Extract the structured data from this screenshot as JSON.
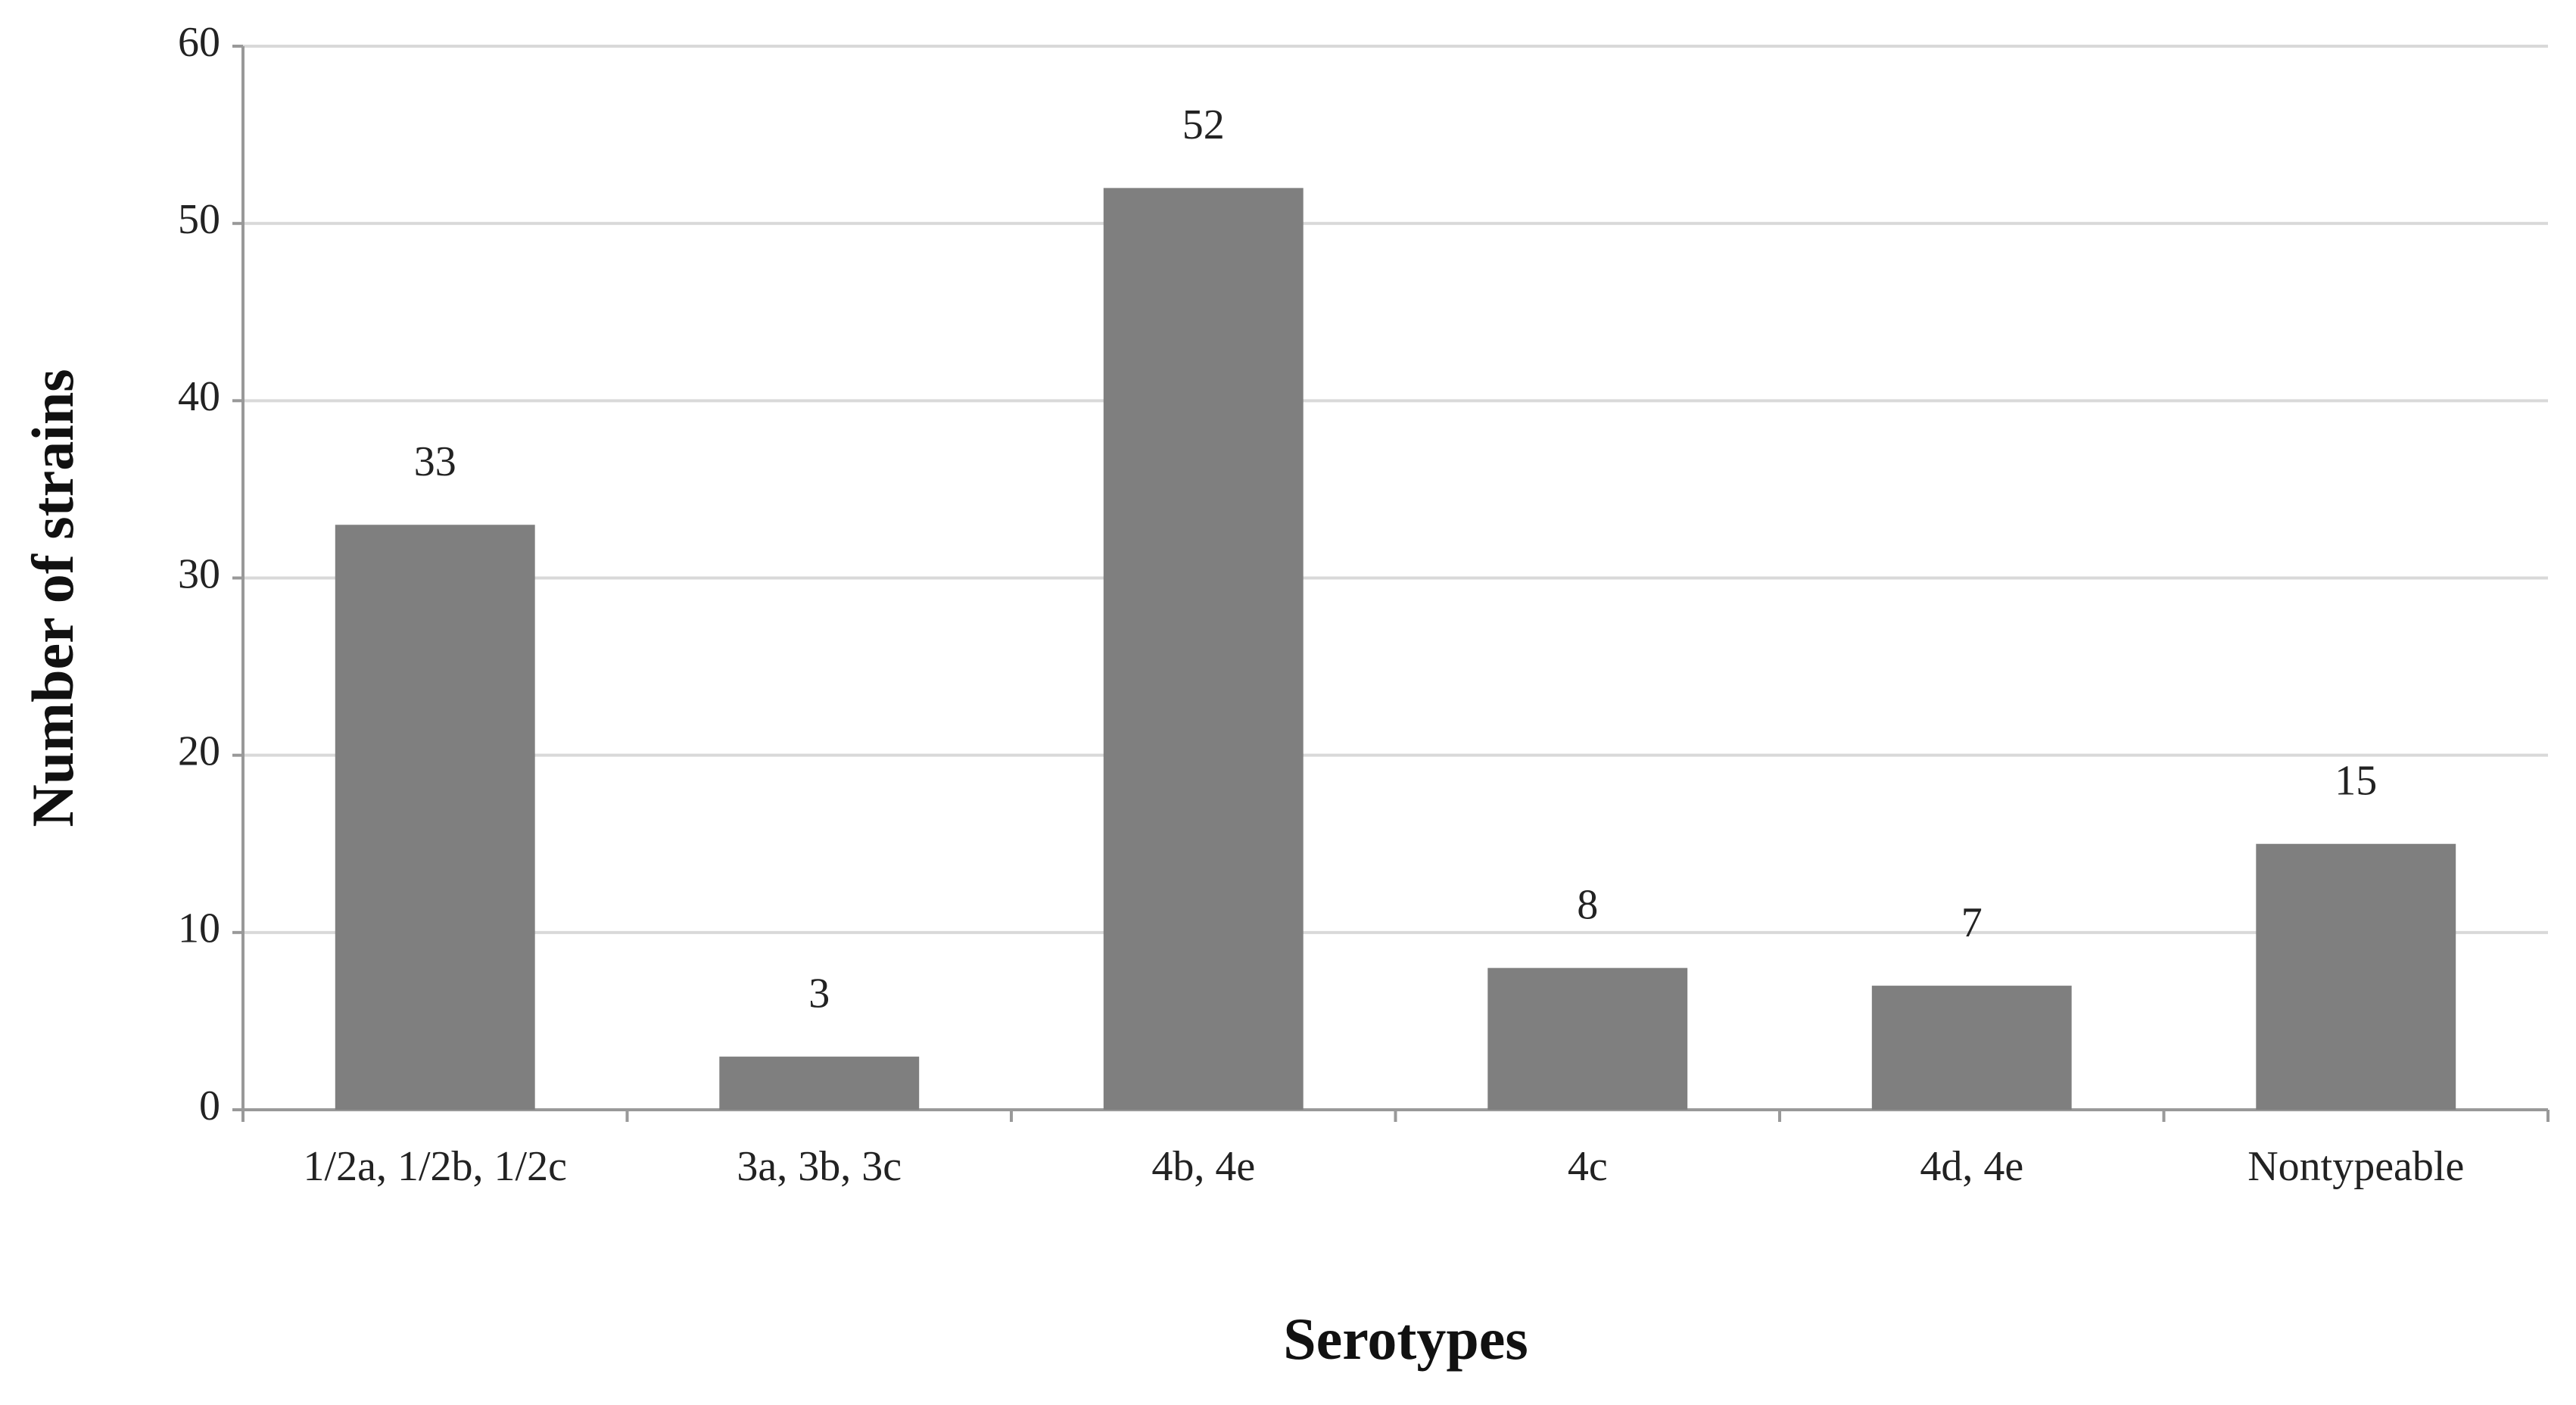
{
  "chart_data": {
    "type": "bar",
    "x_label": "Serotypes",
    "y_label": "Number of strains",
    "categories": [
      "1/2a, 1/2b, 1/2c",
      "3a, 3b, 3c",
      "4b, 4e",
      "4c",
      "4d, 4e",
      "Nontypeable"
    ],
    "values": [
      33,
      3,
      52,
      8,
      7,
      15
    ],
    "color": "#7f7f7f",
    "ylim": [
      0,
      60
    ],
    "yticks": [
      0,
      10,
      20,
      30,
      40,
      50,
      60
    ],
    "grid": true,
    "data_labels": true
  }
}
